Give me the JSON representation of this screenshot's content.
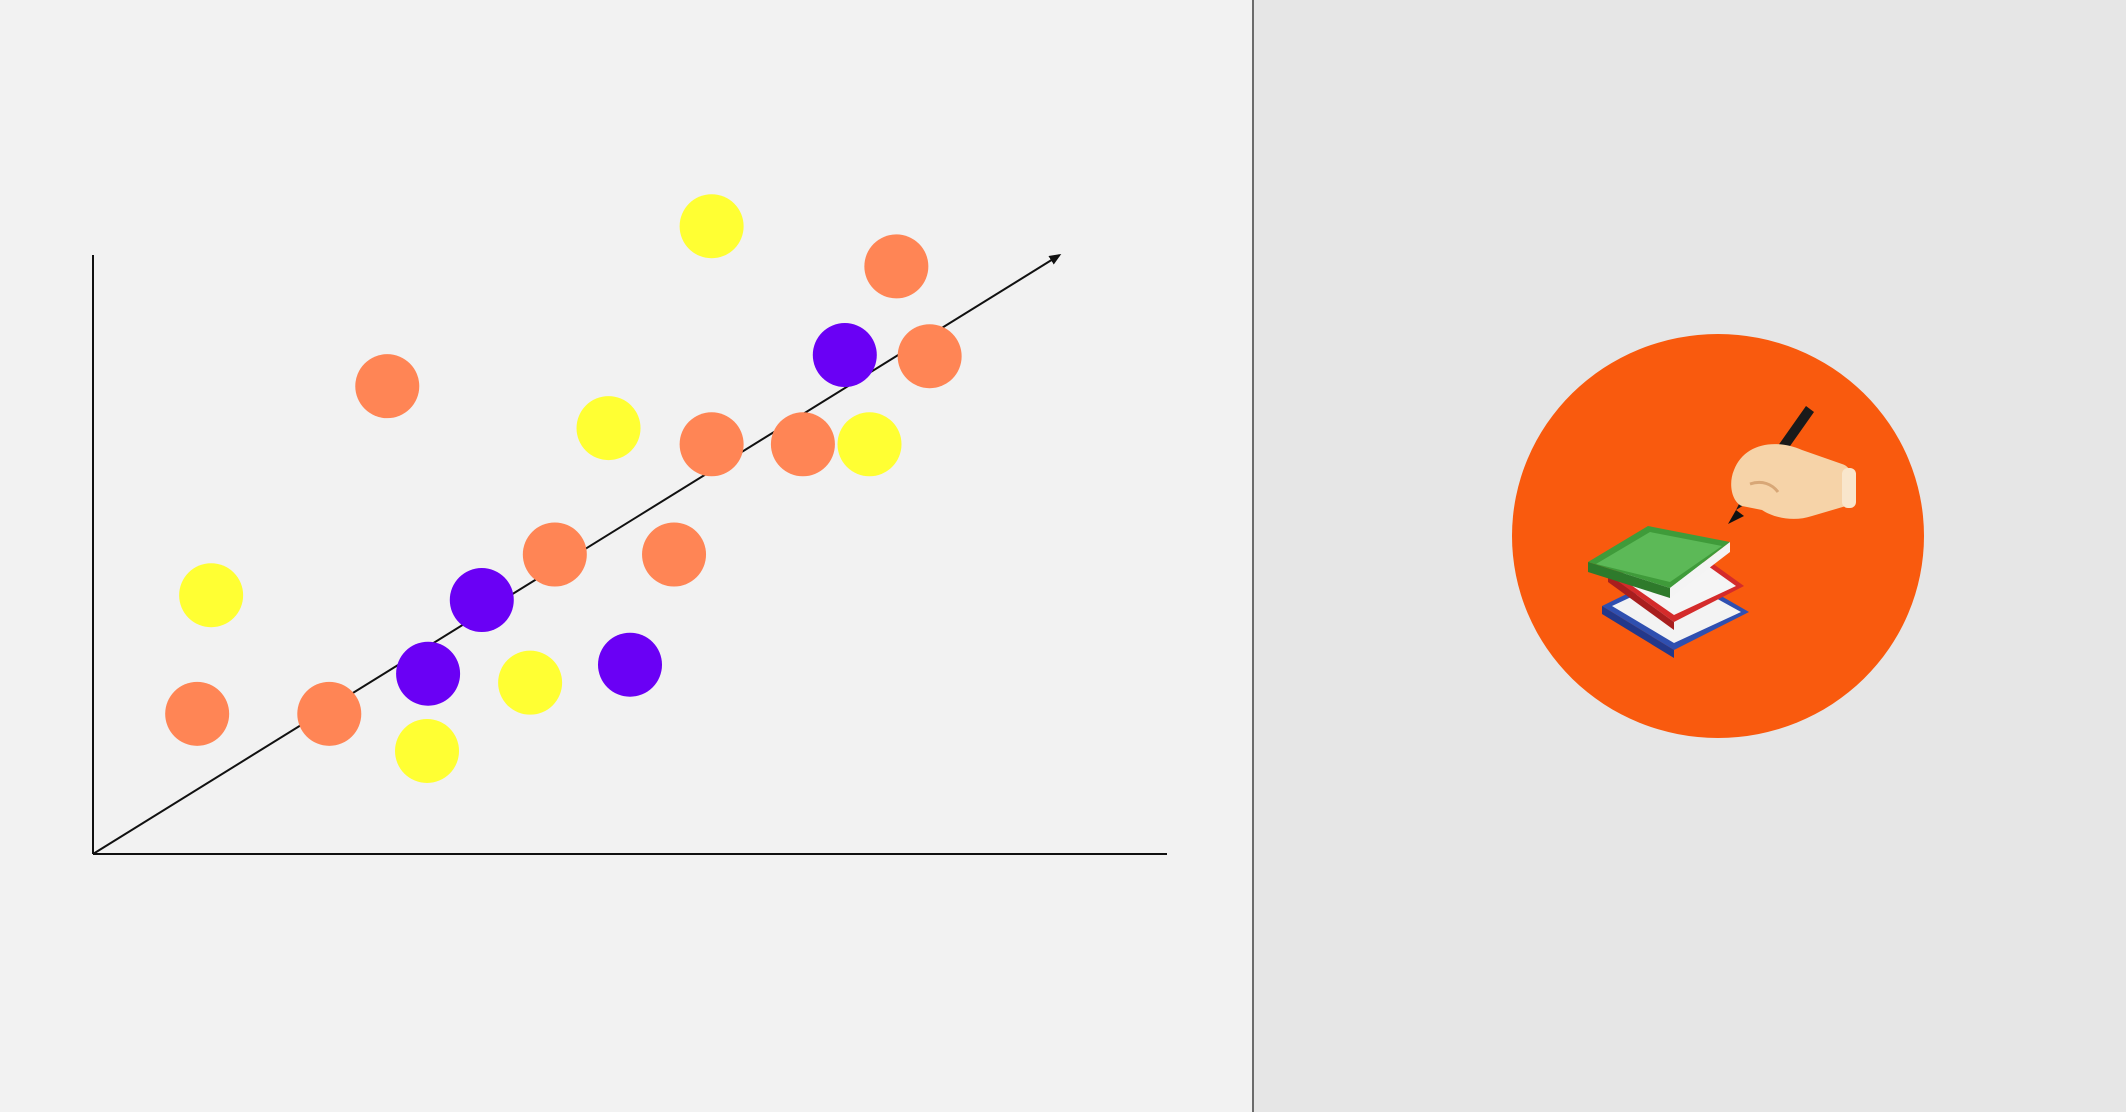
{
  "chart_data": {
    "type": "scatter",
    "title": "",
    "xlabel": "",
    "ylabel": "",
    "xlim": [
      0,
      10
    ],
    "ylim": [
      0,
      10
    ],
    "grid": false,
    "legend": "none",
    "trend_line": {
      "x": [
        0,
        9
      ],
      "y": [
        0,
        10
      ]
    },
    "series": [
      {
        "color": "#ff8555",
        "points": [
          [
            0.97,
            2.34
          ],
          [
            2.2,
            2.34
          ],
          [
            2.74,
            7.81
          ],
          [
            4.3,
            5.0
          ],
          [
            5.41,
            5.0
          ],
          [
            5.76,
            6.84
          ],
          [
            6.61,
            6.84
          ],
          [
            7.48,
            9.81
          ],
          [
            7.79,
            8.31
          ]
        ]
      },
      {
        "color": "#6a00f5",
        "points": [
          [
            3.12,
            3.01
          ],
          [
            3.62,
            4.24
          ],
          [
            5.0,
            3.16
          ],
          [
            7.0,
            8.33
          ]
        ]
      },
      {
        "color": "#ffff33",
        "points": [
          [
            1.1,
            4.32
          ],
          [
            3.11,
            1.72
          ],
          [
            4.07,
            2.86
          ],
          [
            4.8,
            7.11
          ],
          [
            5.76,
            10.48
          ],
          [
            7.23,
            6.84
          ]
        ]
      }
    ]
  },
  "badge": {
    "background": "#f95a0e",
    "icon": "books-and-writing-hand-icon"
  }
}
